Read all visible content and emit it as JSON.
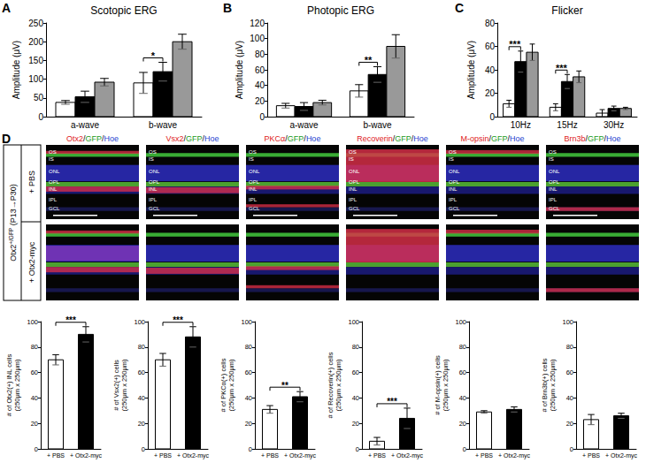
{
  "chart_data": [
    {
      "type": "bar",
      "panel_label": "A",
      "title": "Scotopic ERG",
      "ylabel": "Amplitude (μV)",
      "categories": [
        "a-wave",
        "b-wave"
      ],
      "series": [
        {
          "color": "#ffffff",
          "values": [
            38,
            90
          ],
          "errors": [
            5,
            28
          ]
        },
        {
          "color": "#000000",
          "values": [
            53,
            120
          ],
          "errors": [
            15,
            25
          ]
        },
        {
          "color": "#999999",
          "values": [
            92,
            200
          ],
          "errors": [
            10,
            20
          ]
        }
      ],
      "ylim": [
        0,
        250
      ],
      "yticks": [
        0,
        50,
        100,
        150,
        200,
        250
      ],
      "grid": false,
      "annotations": [
        {
          "text": "*",
          "from": [
            "b-wave",
            0
          ],
          "to": [
            "b-wave",
            1
          ]
        }
      ]
    },
    {
      "type": "bar",
      "panel_label": "B",
      "title": "Photopic ERG",
      "ylabel": "Amplitude (μV)",
      "categories": [
        "a-wave",
        "b-wave"
      ],
      "series": [
        {
          "color": "#ffffff",
          "values": [
            14,
            33
          ],
          "errors": [
            3,
            8
          ]
        },
        {
          "color": "#000000",
          "values": [
            13,
            54
          ],
          "errors": [
            5,
            10
          ]
        },
        {
          "color": "#999999",
          "values": [
            18,
            90
          ],
          "errors": [
            3,
            15
          ]
        }
      ],
      "ylim": [
        0,
        120
      ],
      "yticks": [
        0,
        20,
        40,
        60,
        80,
        100,
        120
      ],
      "grid": false,
      "annotations": [
        {
          "text": "**",
          "from": [
            "b-wave",
            0
          ],
          "to": [
            "b-wave",
            1
          ]
        }
      ]
    },
    {
      "type": "bar",
      "panel_label": "C",
      "title": "Flicker",
      "ylabel": "Amplitude (μV)",
      "categories": [
        "10Hz",
        "15Hz",
        "30Hz"
      ],
      "series": [
        {
          "color": "#ffffff",
          "values": [
            11,
            8,
            3
          ],
          "errors": [
            3,
            3,
            3
          ]
        },
        {
          "color": "#000000",
          "values": [
            47,
            30,
            7
          ],
          "errors": [
            9,
            6,
            2
          ]
        },
        {
          "color": "#999999",
          "values": [
            55,
            34,
            7
          ],
          "errors": [
            7,
            5,
            1
          ]
        }
      ],
      "ylim": [
        0,
        80
      ],
      "yticks": [
        0,
        20,
        40,
        60,
        80
      ],
      "grid": false,
      "annotations": [
        {
          "text": "***",
          "from": [
            "10Hz",
            0
          ],
          "to": [
            "10Hz",
            1
          ]
        },
        {
          "text": "***",
          "from": [
            "15Hz",
            0
          ],
          "to": [
            "15Hz",
            1
          ]
        }
      ]
    },
    {
      "type": "bar",
      "ylabel": "# of Otx2(+) INL cells (250μm x 250μm)",
      "categories": [
        "+ PBS",
        "+ Otx2-myc"
      ],
      "values": [
        70,
        90
      ],
      "errors": [
        4,
        6
      ],
      "colors": [
        "#ffffff",
        "#000000"
      ],
      "ylim": [
        0,
        100
      ],
      "yticks": [
        0,
        20,
        40,
        60,
        80,
        100
      ],
      "grid": false,
      "annotations": [
        {
          "text": "***",
          "from": [
            "+ PBS",
            0
          ],
          "to": [
            "+ Otx2-myc",
            0
          ]
        }
      ]
    },
    {
      "type": "bar",
      "ylabel": "# of Vsx2(+) cells (250μm x 250μm)",
      "categories": [
        "+ PBS",
        "+ Otx2-myc"
      ],
      "values": [
        70,
        88
      ],
      "errors": [
        5,
        8
      ],
      "colors": [
        "#ffffff",
        "#000000"
      ],
      "ylim": [
        0,
        100
      ],
      "yticks": [
        0,
        20,
        40,
        60,
        80,
        100
      ],
      "grid": false,
      "annotations": [
        {
          "text": "***",
          "from": [
            "+ PBS",
            0
          ],
          "to": [
            "+ Otx2-myc",
            0
          ]
        }
      ]
    },
    {
      "type": "bar",
      "ylabel": "# of PKCα(+) cells (250μm x 250μm)",
      "categories": [
        "+ PBS",
        "+ Otx2-myc"
      ],
      "values": [
        31,
        41
      ],
      "errors": [
        3,
        4
      ],
      "colors": [
        "#ffffff",
        "#000000"
      ],
      "ylim": [
        0,
        100
      ],
      "yticks": [
        0,
        20,
        40,
        60,
        80,
        100
      ],
      "grid": false,
      "annotations": [
        {
          "text": "**",
          "from": [
            "+ PBS",
            0
          ],
          "to": [
            "+ Otx2-myc",
            0
          ]
        }
      ]
    },
    {
      "type": "bar",
      "ylabel": "# of Recoverin(+) cells (250μm x 250μm)",
      "categories": [
        "+ PBS",
        "+ Otx2-myc"
      ],
      "values": [
        6,
        24
      ],
      "errors": [
        3,
        8
      ],
      "colors": [
        "#ffffff",
        "#000000"
      ],
      "ylim": [
        0,
        100
      ],
      "yticks": [
        0,
        20,
        40,
        60,
        80,
        100
      ],
      "grid": false,
      "annotations": [
        {
          "text": "***",
          "from": [
            "+ PBS",
            0
          ],
          "to": [
            "+ Otx2-myc",
            0
          ]
        }
      ]
    },
    {
      "type": "bar",
      "ylabel": "# of M-opsin(+) cells (250μm x 250μm)",
      "categories": [
        "+ PBS",
        "+ Otx2-myc"
      ],
      "values": [
        29,
        31
      ],
      "errors": [
        1,
        2
      ],
      "colors": [
        "#ffffff",
        "#000000"
      ],
      "ylim": [
        0,
        100
      ],
      "yticks": [
        0,
        20,
        40,
        60,
        80,
        100
      ],
      "grid": false
    },
    {
      "type": "bar",
      "ylabel": "# of Brn3b(+) cells (250μm x 250μm)",
      "categories": [
        "+ PBS",
        "+ Otx2-myc"
      ],
      "values": [
        23,
        26
      ],
      "errors": [
        4,
        2
      ],
      "colors": [
        "#ffffff",
        "#000000"
      ],
      "ylim": [
        0,
        100
      ],
      "yticks": [
        0,
        20,
        40,
        60,
        80,
        100
      ],
      "grid": false
    }
  ],
  "image_panel": {
    "panel_label": "D",
    "genotype": "Otx2",
    "genotype_sup": "+/GFP",
    "stage": "(P13→P30)",
    "rows": [
      "+ PBS",
      "+ Otx2-myc"
    ],
    "columns": [
      "Otx2/GFP/Hoe",
      "Vsx2/GFP/Hoe",
      "PKCα/GFP/Hoe",
      "Recoverin/GFP/Hoe",
      "M-opsin/GFP/Hoe",
      "Brn3b/GFP/Hoe"
    ],
    "layers": [
      "OS",
      "IS",
      "ONL",
      "OPL",
      "INL",
      "IPL",
      "GCL"
    ]
  }
}
